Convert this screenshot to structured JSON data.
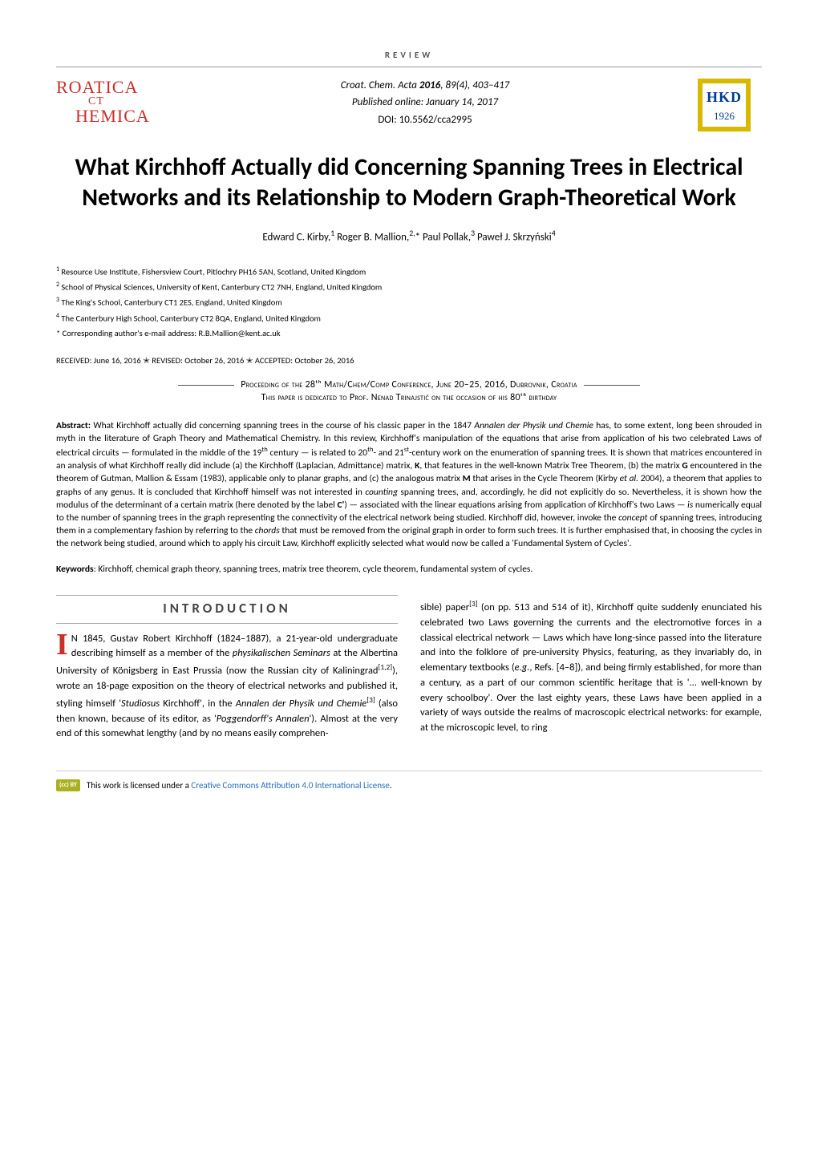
{
  "review_label": "REVIEW",
  "logo_left": {
    "line1": "ROATICA",
    "ct": "CT",
    "line2": "HEMICA",
    "color": "#c9302c"
  },
  "meta": {
    "journal": "Croat. Chem. Acta",
    "year_bold": "2016",
    "vol_issue": "89(4), 403–417",
    "published": "Published online: January 14, 2017",
    "doi": "DOI: 10.5562/cca2995"
  },
  "logo_right": {
    "text": "HKD",
    "year": "1926",
    "border_color": "#d9b800",
    "text_color": "#003d8f"
  },
  "title": "What Kirchhoff Actually did Concerning Spanning Trees in Electrical Networks and its Relationship to Modern Graph-Theoretical Work",
  "authors_html": "Edward C. Kirby,<sup>1</sup> Roger B. Mallion,<sup>2,</sup>* Paul Pollak,<sup>3</sup> Paweł J. Skrzyński<sup>4</sup>",
  "affiliations": [
    "<sup>1</sup>  Resource Use Institute, Fishersview Court, Pitlochry PH16 5AN, Scotland, United Kingdom",
    "<sup>2</sup>  School of Physical Sciences, University of Kent, Canterbury CT2 7NH, England, United Kingdom",
    "<sup>3</sup>  The King's School, Canterbury CT1 2ES, England, United Kingdom",
    "<sup>4</sup>  The Canterbury High School, Canterbury CT2 8QA, England, United Kingdom",
    "* Corresponding author's e-mail address: R.B.Mallion@kent.ac.uk"
  ],
  "dates": "RECEIVED: June 16, 2016  ✭  REVISED: October 26, 2016  ✭  ACCEPTED: October 26, 2016",
  "proceeding_line1": "Proceeding of the 28ᵗʰ Math/Chem/Comp Conference, June 20–25, 2016, Dubrovnik, Croatia",
  "proceeding_line2": "This paper is dedicated to Prof. Nenad Trinajstić on the occasion of his 80ᵗʰ birthday",
  "abstract_label": "Abstract:",
  "abstract_html": "What Kirchhoff actually did concerning spanning trees in the course of his classic paper in the 1847 <i>Annalen der Physik und Chemie</i> has, to some extent, long been shrouded in myth in the literature of Graph Theory and Mathematical Chemistry. In this review, Kirchhoff's manipulation of the equations that arise from application of his two celebrated Laws of electrical circuits — formulated in the middle of the 19<sup>th</sup> century — is related to 20<sup>th</sup>- and 21<sup>st</sup>-century work on the enumeration of spanning trees. It is shown that matrices encountered in an analysis of what Kirchhoff really did include (a) the Kirchhoff (Laplacian, Admittance) matrix, <b>K</b>, that features in the well-known Matrix Tree Theorem, (b) the matrix <b>G</b> encountered in the theorem of Gutman, Mallion & Essam (1983), applicable only to planar graphs, and (c) the analogous matrix <b>M</b> that arises in the Cycle Theorem (Kirby <i>et al.</i> 2004), a theorem that applies to graphs of any genus. It is concluded that Kirchhoff himself was not interested in <i>counting</i> spanning trees, and, accordingly, he did not explicitly do so. Nevertheless, it is shown how the modulus of the determinant of a certain matrix (here denoted by the label <b>C'</b>) — associated with the linear equations arising from application of Kirchhoff's two Laws — <i>is</i> numerically equal to the number of spanning trees in the graph representing the connectivity of the electrical network being studied. Kirchhoff did, however, invoke the <i>concept</i> of spanning trees, introducing them in a complementary fashion by referring to the <i>chords</i> that must be removed from the original graph in order to form such trees. It is further emphasised that, in choosing the cycles in the network being studied, around which to apply his circuit Law, Kirchhoff explicitly selected what would now be called a 'Fundamental System of Cycles'.",
  "keywords_label": "Keywords",
  "keywords_text": ": Kirchhoff, chemical graph theory, spanning trees, matrix tree theorem, cycle theorem, fundamental system of cycles.",
  "section_header": "INTRODUCTION",
  "body": {
    "dropcap": "I",
    "col1_html": "N 1845, Gustav Robert Kirchhoff (1824–1887), a 21-year-old undergraduate describing himself as a member of the <i>physikalischen Seminars</i> at the Albertina University of Königsberg in East Prussia (now the Russian city of Kaliningrad<sup>[1,2]</sup>), wrote an 18-page exposition on the theory of electrical networks and published it, styling himself '<i>Studiosus</i> Kirchhoff', in the <i>Annalen der Physik und Chemie</i><sup>[3]</sup> (also then known, because of its editor, as '<i>Poggendorff's Annalen</i>'). Almost at the very end of this somewhat lengthy (and by no means easily comprehen-",
    "col2_html": "sible) paper<sup>[3]</sup> (on pp. 513 and 514 of it), Kirchhoff quite suddenly enunciated his celebrated two Laws governing the currents and the electromotive forces in a classical electrical network — Laws which have long-since passed into the literature and into the folklore of pre-university Physics, featuring, as they invariably do, in elementary textbooks (<i>e.g.</i>, Refs. [4–8]), and being firmly established, for more than a century, as a part of our common scientific heritage that is '... well-known by every schoolboy'. Over the last eighty years, these Laws have been applied in a variety of ways outside the realms of macroscopic electrical networks: for example, at the microscopic level, to ring"
  },
  "footer": {
    "cc_badge": "(cc) BY",
    "text": "This work is licensed under a ",
    "link_text": "Creative Commons Attribution 4.0 International License",
    "period": "."
  },
  "colors": {
    "accent_red": "#c9302c",
    "link_blue": "#2a6ebb",
    "rule_gray": "#aaa"
  }
}
